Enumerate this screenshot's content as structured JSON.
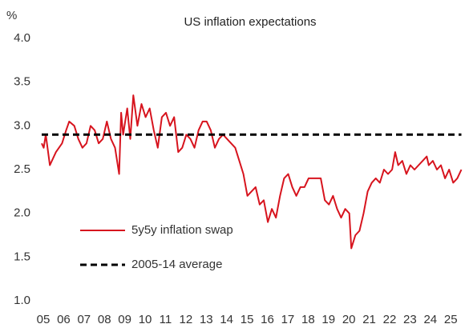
{
  "chart_data": {
    "type": "line",
    "title": "US inflation expectations",
    "y_label": "%",
    "xlim": [
      2005,
      2025.7
    ],
    "xticks": [
      {
        "value": 2005,
        "label": "05"
      },
      {
        "value": 2006,
        "label": "06"
      },
      {
        "value": 2007,
        "label": "07"
      },
      {
        "value": 2008,
        "label": "08"
      },
      {
        "value": 2009,
        "label": "09"
      },
      {
        "value": 2010,
        "label": "10"
      },
      {
        "value": 2011,
        "label": "11"
      },
      {
        "value": 2012,
        "label": "12"
      },
      {
        "value": 2013,
        "label": "13"
      },
      {
        "value": 2014,
        "label": "14"
      },
      {
        "value": 2015,
        "label": "15"
      },
      {
        "value": 2016,
        "label": "16"
      },
      {
        "value": 2017,
        "label": "17"
      },
      {
        "value": 2018,
        "label": "18"
      },
      {
        "value": 2019,
        "label": "19"
      },
      {
        "value": 2020,
        "label": "20"
      },
      {
        "value": 2021,
        "label": "21"
      },
      {
        "value": 2022,
        "label": "22"
      },
      {
        "value": 2023,
        "label": "23"
      },
      {
        "value": 2024,
        "label": "24"
      },
      {
        "value": 2025,
        "label": "25"
      }
    ],
    "ylim": [
      1,
      4
    ],
    "yticks": [
      {
        "value": 1,
        "label": "1.0"
      },
      1.5,
      {
        "value": 2,
        "label": "2.0"
      },
      2.5,
      {
        "value": 3,
        "label": "3.0"
      },
      3.5,
      {
        "value": 4,
        "label": "4.0"
      }
    ],
    "grid": false,
    "series": [
      {
        "name": "5y5y inflation swap",
        "color": "#d7141e",
        "dash": false,
        "x": [
          2005,
          2005.1,
          2005.2,
          2005.4,
          2005.7,
          2006,
          2006.2,
          2006.35,
          2006.6,
          2006.8,
          2007,
          2007.2,
          2007.4,
          2007.6,
          2007.8,
          2008,
          2008.2,
          2008.4,
          2008.6,
          2008.8,
          2008.9,
          2009,
          2009.2,
          2009.35,
          2009.5,
          2009.7,
          2009.9,
          2010.1,
          2010.3,
          2010.5,
          2010.7,
          2010.9,
          2011.1,
          2011.3,
          2011.5,
          2011.7,
          2011.9,
          2012.1,
          2012.3,
          2012.5,
          2012.7,
          2012.9,
          2013.1,
          2013.3,
          2013.5,
          2013.7,
          2013.9,
          2014.1,
          2014.3,
          2014.5,
          2014.7,
          2014.9,
          2015.1,
          2015.3,
          2015.5,
          2015.7,
          2015.9,
          2016.1,
          2016.3,
          2016.5,
          2016.7,
          2016.9,
          2017.1,
          2017.3,
          2017.5,
          2017.7,
          2017.9,
          2018.1,
          2018.3,
          2018.5,
          2018.7,
          2018.9,
          2019.1,
          2019.3,
          2019.5,
          2019.7,
          2019.9,
          2020.1,
          2020.2,
          2020.4,
          2020.6,
          2020.8,
          2021,
          2021.2,
          2021.4,
          2021.6,
          2021.8,
          2022,
          2022.2,
          2022.35,
          2022.5,
          2022.7,
          2022.9,
          2023.1,
          2023.3,
          2023.5,
          2023.7,
          2023.9,
          2024,
          2024.2,
          2024.4,
          2024.6,
          2024.8,
          2025,
          2025.2,
          2025.4,
          2025.6
        ],
        "values": [
          2.8,
          2.75,
          2.9,
          2.55,
          2.7,
          2.8,
          2.95,
          3.05,
          3.0,
          2.85,
          2.75,
          2.8,
          3.0,
          2.95,
          2.8,
          2.85,
          3.05,
          2.85,
          2.75,
          2.45,
          3.15,
          2.9,
          3.2,
          2.85,
          3.35,
          3.0,
          3.25,
          3.1,
          3.2,
          2.95,
          2.75,
          3.1,
          3.15,
          3.0,
          3.1,
          2.7,
          2.75,
          2.9,
          2.85,
          2.75,
          2.95,
          3.05,
          3.05,
          2.95,
          2.75,
          2.85,
          2.9,
          2.85,
          2.8,
          2.75,
          2.6,
          2.45,
          2.2,
          2.25,
          2.3,
          2.1,
          2.15,
          1.9,
          2.05,
          1.95,
          2.2,
          2.4,
          2.45,
          2.3,
          2.2,
          2.3,
          2.3,
          2.4,
          2.4,
          2.4,
          2.4,
          2.15,
          2.1,
          2.2,
          2.05,
          1.95,
          2.05,
          2.0,
          1.6,
          1.75,
          1.8,
          2.0,
          2.25,
          2.35,
          2.4,
          2.35,
          2.5,
          2.45,
          2.5,
          2.7,
          2.55,
          2.6,
          2.45,
          2.55,
          2.5,
          2.55,
          2.6,
          2.65,
          2.55,
          2.6,
          2.5,
          2.55,
          2.4,
          2.5,
          2.35,
          2.4,
          2.5
        ]
      },
      {
        "name": "2005-14 average",
        "color": "#000000",
        "dash": true,
        "x": [
          2005,
          2025.6
        ],
        "values": [
          2.9,
          2.9
        ]
      }
    ]
  }
}
